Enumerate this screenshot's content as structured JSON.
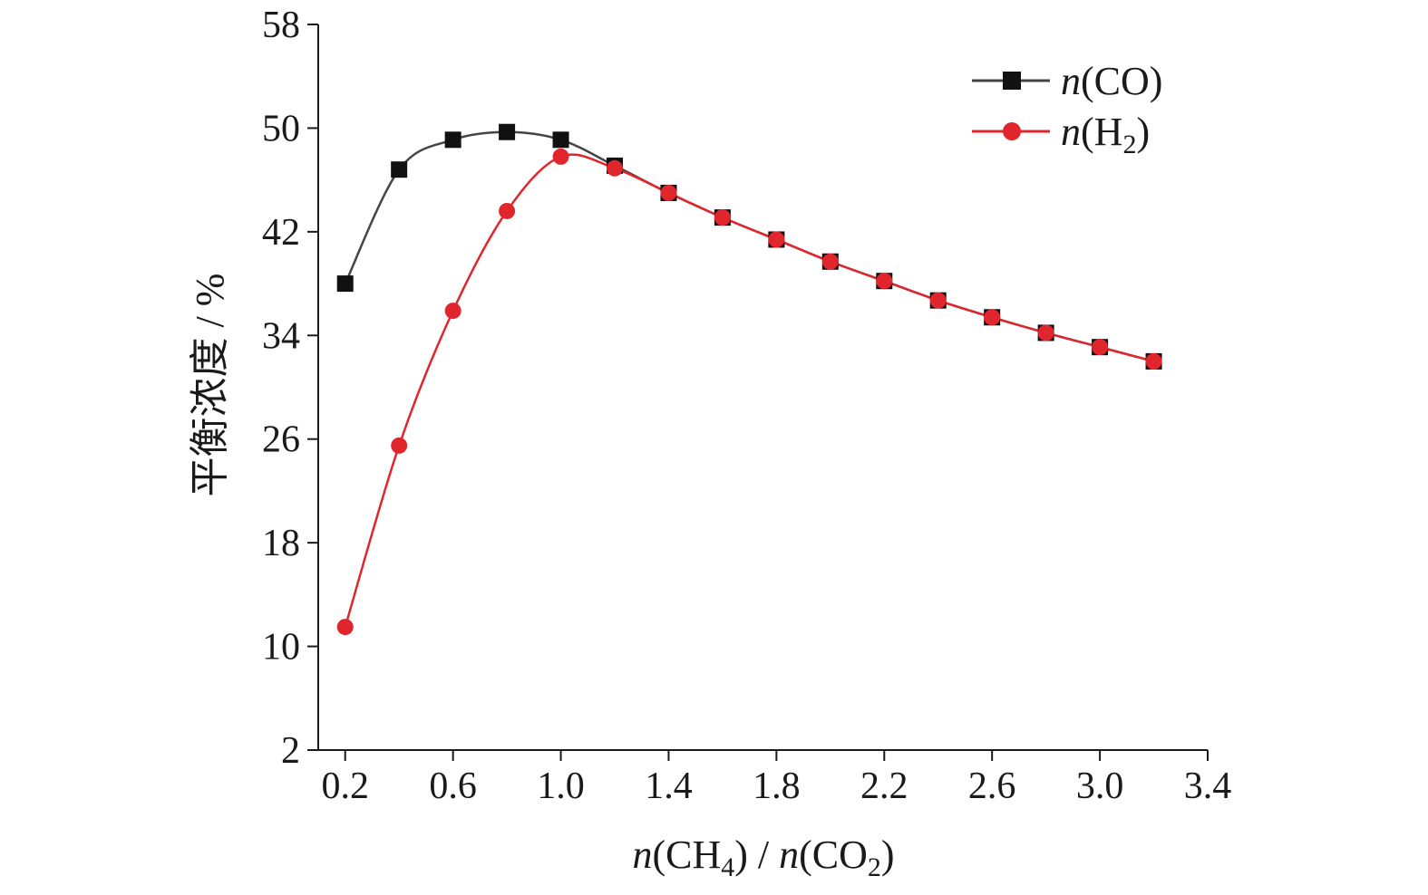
{
  "chart_data": {
    "type": "line",
    "xlabel": "n(CH4) / n(CO2)",
    "ylabel": "平衡浓度 / %",
    "xlim": [
      0.1,
      3.4
    ],
    "ylim": [
      2,
      58
    ],
    "x_ticks": [
      "0.2",
      "0.6",
      "1.0",
      "1.4",
      "1.8",
      "2.2",
      "2.6",
      "3.0",
      "3.4"
    ],
    "y_ticks": [
      "2",
      "10",
      "18",
      "26",
      "34",
      "42",
      "50",
      "58"
    ],
    "grid": false,
    "legend_position": "top-right",
    "x": [
      0.2,
      0.4,
      0.6,
      0.8,
      1.0,
      1.2,
      1.4,
      1.6,
      1.8,
      2.0,
      2.2,
      2.4,
      2.6,
      2.8,
      3.0,
      3.2
    ],
    "series": [
      {
        "name": "n(CO)",
        "marker": "square",
        "color": "#111111",
        "line_color": "#444444",
        "values": [
          38.0,
          46.8,
          49.1,
          49.7,
          49.1,
          47.1,
          45.0,
          43.1,
          41.4,
          39.7,
          38.2,
          36.7,
          35.4,
          34.2,
          33.1,
          32.0
        ]
      },
      {
        "name": "n(H2)",
        "marker": "circle",
        "color": "#e0262c",
        "line_color": "#e0262c",
        "values": [
          11.5,
          25.5,
          35.9,
          43.6,
          47.8,
          46.9,
          45.0,
          43.1,
          41.4,
          39.7,
          38.2,
          36.7,
          35.4,
          34.2,
          33.1,
          32.0
        ]
      }
    ]
  }
}
